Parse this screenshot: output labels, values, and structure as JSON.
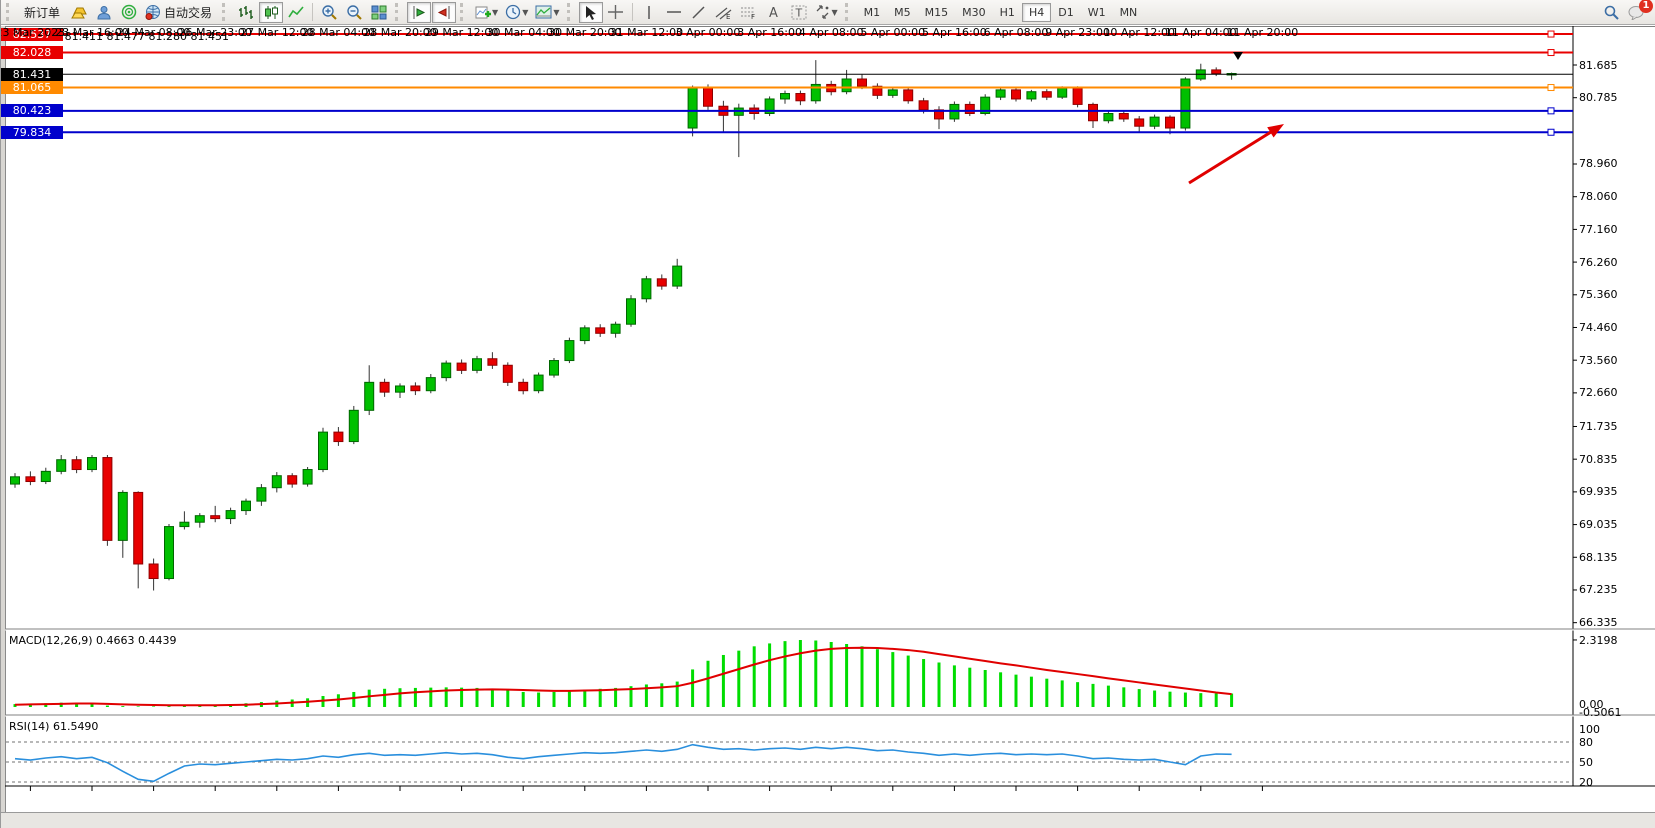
{
  "toolbar": {
    "new_order_label": "新订单",
    "autotrade_label": "自动交易",
    "timeframes": [
      "M1",
      "M5",
      "M15",
      "M30",
      "H1",
      "H4",
      "D1",
      "W1",
      "MN"
    ],
    "active_timeframe": "H4",
    "notification_badge": "1"
  },
  "chart": {
    "title": "USOil·,H4  81.411 81.477 81.280 81.451",
    "current_price": "81.431",
    "macd_label": "MACD(12,26,9) 0.4663 0.4439",
    "rsi_label": "RSI(14) 61.5490",
    "price_ticks": [
      "81.685",
      "80.785",
      "78.960",
      "78.060",
      "77.160",
      "76.260",
      "75.360",
      "74.460",
      "73.560",
      "72.660",
      "71.735",
      "70.835",
      "69.935",
      "69.035",
      "68.135",
      "67.235",
      "66.335"
    ],
    "levels": [
      {
        "price": "82.537",
        "color": "#e80000",
        "text": "#ffffff"
      },
      {
        "price": "82.028",
        "color": "#e80000",
        "text": "#ffffff"
      },
      {
        "price": "81.431",
        "color": "#000000",
        "text": "#ffffff"
      },
      {
        "price": "81.065",
        "color": "#ff8a00",
        "text": "#ffffff"
      },
      {
        "price": "80.423",
        "color": "#0000cc",
        "text": "#ffffff"
      },
      {
        "price": "79.834",
        "color": "#0000cc",
        "text": "#ffffff"
      }
    ],
    "macd_scale": [
      "2.3198",
      "0.00",
      "-0.5061"
    ],
    "rsi_scale": [
      "100",
      "80",
      "50",
      "20"
    ],
    "time_labels": [
      "23 Mar 2023",
      "23 Mar 16:00",
      "24 Mar 08:00",
      "26 Mar 23:00",
      "27 Mar 12:00",
      "28 Mar 04:00",
      "28 Mar 20:00",
      "29 Mar 12:00",
      "30 Mar 04:00",
      "30 Mar 20:00",
      "31 Mar 12:00",
      "3 Apr 00:00",
      "3 Apr 16:00",
      "4 Apr 08:00",
      "5 Apr 00:00",
      "5 Apr 16:00",
      "6 Apr 08:00",
      "9 Apr 23:00",
      "10 Apr 12:00",
      "11 Apr 04:00",
      "11 Apr 20:00"
    ]
  },
  "chart_data": {
    "type": "candlestick",
    "symbol": "USOil",
    "timeframe": "H4",
    "last_bar": {
      "open": 81.411,
      "high": 81.477,
      "low": 81.28,
      "close": 81.451
    },
    "colors": {
      "up": "#00c000",
      "down": "#e80000",
      "wick": "#333333",
      "macd_hist": "#00dd00",
      "macd_signal": "#e00000",
      "rsi_line": "#2a8fdd"
    },
    "y_axis_range": [
      66.335,
      82.8
    ],
    "horizontal_levels": [
      82.537,
      82.028,
      81.431,
      81.065,
      80.423,
      79.834
    ],
    "candles": [
      [
        70.15,
        70.45,
        70.05,
        70.35
      ],
      [
        70.35,
        70.5,
        70.12,
        70.22
      ],
      [
        70.22,
        70.6,
        70.15,
        70.5
      ],
      [
        70.5,
        70.95,
        70.42,
        70.82
      ],
      [
        70.82,
        70.92,
        70.45,
        70.55
      ],
      [
        70.55,
        70.95,
        70.48,
        70.88
      ],
      [
        70.88,
        70.95,
        68.45,
        68.6
      ],
      [
        68.6,
        69.98,
        68.12,
        69.92
      ],
      [
        69.92,
        69.95,
        67.28,
        67.95
      ],
      [
        67.95,
        68.1,
        67.22,
        67.55
      ],
      [
        67.55,
        69.05,
        67.5,
        68.98
      ],
      [
        68.98,
        69.4,
        68.9,
        69.1
      ],
      [
        69.1,
        69.35,
        68.95,
        69.28
      ],
      [
        69.28,
        69.55,
        69.1,
        69.2
      ],
      [
        69.2,
        69.5,
        69.05,
        69.42
      ],
      [
        69.42,
        69.75,
        69.3,
        69.68
      ],
      [
        69.68,
        70.15,
        69.55,
        70.05
      ],
      [
        70.05,
        70.48,
        69.92,
        70.38
      ],
      [
        70.38,
        70.45,
        70.05,
        70.15
      ],
      [
        70.15,
        70.62,
        70.08,
        70.55
      ],
      [
        70.55,
        71.7,
        70.48,
        71.58
      ],
      [
        71.58,
        71.72,
        71.2,
        71.32
      ],
      [
        71.32,
        72.3,
        71.25,
        72.18
      ],
      [
        72.18,
        73.42,
        72.05,
        72.95
      ],
      [
        72.95,
        73.05,
        72.55,
        72.68
      ],
      [
        72.68,
        72.92,
        72.52,
        72.85
      ],
      [
        72.85,
        72.95,
        72.6,
        72.72
      ],
      [
        72.72,
        73.18,
        72.65,
        73.08
      ],
      [
        73.08,
        73.55,
        72.98,
        73.48
      ],
      [
        73.48,
        73.58,
        73.18,
        73.28
      ],
      [
        73.28,
        73.68,
        73.2,
        73.6
      ],
      [
        73.6,
        73.78,
        73.32,
        73.42
      ],
      [
        73.42,
        73.5,
        72.85,
        72.95
      ],
      [
        72.95,
        73.05,
        72.62,
        72.72
      ],
      [
        72.72,
        73.22,
        72.65,
        73.15
      ],
      [
        73.15,
        73.62,
        73.08,
        73.55
      ],
      [
        73.55,
        74.18,
        73.48,
        74.1
      ],
      [
        74.1,
        74.52,
        74.0,
        74.45
      ],
      [
        74.45,
        74.55,
        74.2,
        74.3
      ],
      [
        74.3,
        74.62,
        74.18,
        74.55
      ],
      [
        74.55,
        75.35,
        74.48,
        75.25
      ],
      [
        75.25,
        75.88,
        75.15,
        75.8
      ],
      [
        75.8,
        75.92,
        75.5,
        75.6
      ],
      [
        75.6,
        76.35,
        75.52,
        76.15
      ],
      [
        79.95,
        81.12,
        79.72,
        81.05
      ],
      [
        81.05,
        81.15,
        80.45,
        80.55
      ],
      [
        80.55,
        80.7,
        79.85,
        80.3
      ],
      [
        80.3,
        80.62,
        79.15,
        80.5
      ],
      [
        80.5,
        80.6,
        80.18,
        80.35
      ],
      [
        80.35,
        80.82,
        80.28,
        80.75
      ],
      [
        80.75,
        80.98,
        80.62,
        80.9
      ],
      [
        80.9,
        80.98,
        80.58,
        80.7
      ],
      [
        80.7,
        81.82,
        80.62,
        81.15
      ],
      [
        81.15,
        81.25,
        80.85,
        80.95
      ],
      [
        80.95,
        81.55,
        80.88,
        81.3
      ],
      [
        81.3,
        81.42,
        81.02,
        81.1
      ],
      [
        81.1,
        81.18,
        80.75,
        80.85
      ],
      [
        80.85,
        81.08,
        80.78,
        81.0
      ],
      [
        81.0,
        81.05,
        80.62,
        80.7
      ],
      [
        80.7,
        80.78,
        80.35,
        80.45
      ],
      [
        80.45,
        80.55,
        79.92,
        80.2
      ],
      [
        80.2,
        80.68,
        80.12,
        80.6
      ],
      [
        80.6,
        80.68,
        80.28,
        80.35
      ],
      [
        80.35,
        80.88,
        80.3,
        80.8
      ],
      [
        80.8,
        81.05,
        80.72,
        81.0
      ],
      [
        81.0,
        81.08,
        80.68,
        80.75
      ],
      [
        80.75,
        81.0,
        80.68,
        80.95
      ],
      [
        80.95,
        81.02,
        80.72,
        80.8
      ],
      [
        80.8,
        81.1,
        80.75,
        81.05
      ],
      [
        81.05,
        81.1,
        80.52,
        80.6
      ],
      [
        80.6,
        80.65,
        79.95,
        80.15
      ],
      [
        80.15,
        80.42,
        80.08,
        80.35
      ],
      [
        80.35,
        80.42,
        80.12,
        80.2
      ],
      [
        80.2,
        80.28,
        79.85,
        80.0
      ],
      [
        80.0,
        80.32,
        79.92,
        80.25
      ],
      [
        80.25,
        80.3,
        79.78,
        79.95
      ],
      [
        79.95,
        81.35,
        79.88,
        81.3
      ],
      [
        81.3,
        81.72,
        81.25,
        81.55
      ],
      [
        81.55,
        81.62,
        81.38,
        81.45
      ],
      [
        81.41,
        81.477,
        81.28,
        81.451
      ]
    ],
    "indicators": [
      {
        "type": "bar",
        "name": "MACD(12,26,9)",
        "current_values": [
          0.4663,
          0.4439
        ],
        "scale_max": 2.3198,
        "scale_min": -0.5061,
        "histogram": [
          0.1,
          0.12,
          0.13,
          0.15,
          0.14,
          0.12,
          0.05,
          0.03,
          0.02,
          0.02,
          0.03,
          0.05,
          0.06,
          0.08,
          0.1,
          0.13,
          0.17,
          0.22,
          0.26,
          0.3,
          0.38,
          0.44,
          0.52,
          0.6,
          0.63,
          0.65,
          0.66,
          0.67,
          0.68,
          0.67,
          0.66,
          0.64,
          0.58,
          0.52,
          0.5,
          0.52,
          0.56,
          0.6,
          0.63,
          0.66,
          0.72,
          0.78,
          0.82,
          0.88,
          1.3,
          1.6,
          1.8,
          1.95,
          2.1,
          2.2,
          2.28,
          2.32,
          2.3,
          2.25,
          2.18,
          2.1,
          2.0,
          1.9,
          1.78,
          1.66,
          1.54,
          1.44,
          1.36,
          1.28,
          1.2,
          1.12,
          1.05,
          0.98,
          0.92,
          0.86,
          0.8,
          0.74,
          0.68,
          0.62,
          0.57,
          0.53,
          0.5,
          0.48,
          0.47,
          0.4663
        ],
        "signal": [
          0.08,
          0.09,
          0.1,
          0.11,
          0.12,
          0.12,
          0.11,
          0.09,
          0.08,
          0.07,
          0.06,
          0.06,
          0.06,
          0.06,
          0.07,
          0.08,
          0.1,
          0.12,
          0.15,
          0.18,
          0.22,
          0.26,
          0.31,
          0.37,
          0.42,
          0.47,
          0.51,
          0.54,
          0.57,
          0.59,
          0.6,
          0.61,
          0.6,
          0.59,
          0.57,
          0.56,
          0.56,
          0.57,
          0.58,
          0.6,
          0.62,
          0.65,
          0.68,
          0.72,
          0.84,
          0.99,
          1.15,
          1.31,
          1.47,
          1.62,
          1.75,
          1.86,
          1.95,
          2.01,
          2.04,
          2.05,
          2.04,
          2.01,
          1.97,
          1.91,
          1.83,
          1.75,
          1.67,
          1.59,
          1.51,
          1.44,
          1.36,
          1.28,
          1.21,
          1.14,
          1.07,
          0.99,
          0.92,
          0.85,
          0.78,
          0.71,
          0.64,
          0.57,
          0.5,
          0.4439
        ]
      },
      {
        "type": "line",
        "name": "RSI(14)",
        "current_value": 61.549,
        "levels": [
          100,
          80,
          50,
          20
        ],
        "range": [
          0,
          100
        ],
        "series": [
          55,
          53,
          56,
          58,
          55,
          57,
          49,
          36,
          24,
          21,
          33,
          44,
          47,
          46,
          48,
          50,
          52,
          54,
          53,
          55,
          59,
          57,
          61,
          63,
          60,
          61,
          60,
          62,
          64,
          62,
          63,
          61,
          57,
          55,
          58,
          60,
          62,
          64,
          63,
          64,
          66,
          68,
          66,
          69,
          76,
          72,
          69,
          70,
          68,
          70,
          71,
          69,
          72,
          70,
          72,
          70,
          67,
          68,
          65,
          63,
          60,
          62,
          60,
          62,
          63,
          61,
          62,
          61,
          62,
          59,
          55,
          56,
          54,
          53,
          54,
          50,
          46,
          59,
          62,
          61.5
        ]
      }
    ]
  }
}
